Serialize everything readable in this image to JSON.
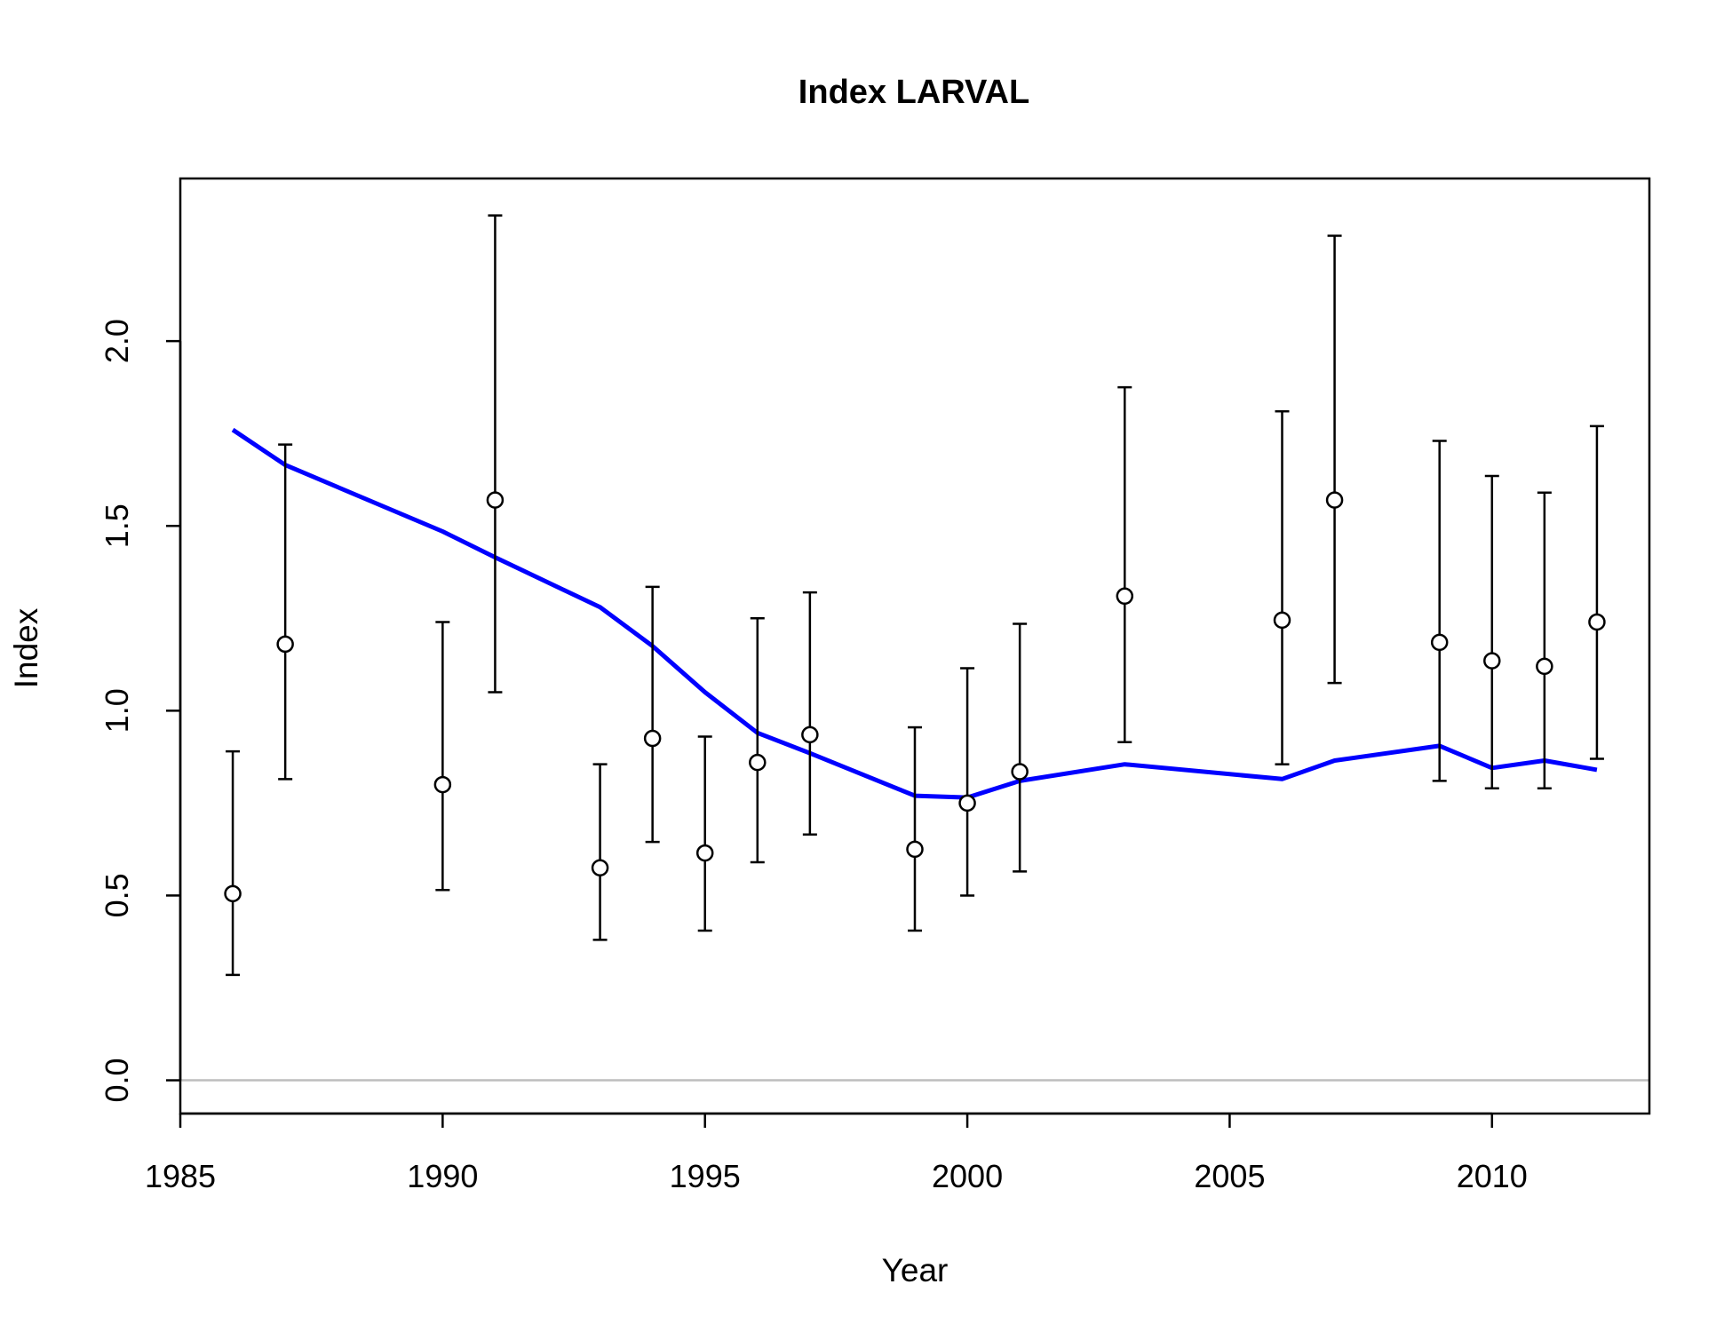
{
  "chart_data": {
    "type": "scatter",
    "title": "Index LARVAL",
    "xlabel": "Year",
    "ylabel": "Index",
    "xlim": [
      1985,
      2013
    ],
    "ylim": [
      -0.09,
      2.44
    ],
    "x_ticks": [
      1985,
      1990,
      1995,
      2000,
      2005,
      2010
    ],
    "x_tick_labels": [
      "1985",
      "1990",
      "1995",
      "2000",
      "2005",
      "2010"
    ],
    "y_ticks": [
      0.0,
      0.5,
      1.0,
      1.5,
      2.0
    ],
    "y_tick_labels": [
      "0.0",
      "0.5",
      "1.0",
      "1.5",
      "2.0"
    ],
    "reference_line": {
      "y": 0.0,
      "color": "#bebebe"
    },
    "observed": {
      "x": [
        1986,
        1987,
        1990,
        1991,
        1993,
        1994,
        1995,
        1996,
        1997,
        1999,
        2000,
        2001,
        2003,
        2006,
        2007,
        2009,
        2010,
        2011,
        2012
      ],
      "y": [
        0.505,
        1.18,
        0.8,
        1.57,
        0.575,
        0.925,
        0.615,
        0.86,
        0.935,
        0.625,
        0.75,
        0.835,
        1.31,
        1.245,
        1.57,
        1.185,
        1.135,
        1.12,
        1.24
      ],
      "lower": [
        0.285,
        0.815,
        0.515,
        1.05,
        0.38,
        0.645,
        0.405,
        0.59,
        0.665,
        0.405,
        0.5,
        0.565,
        0.915,
        0.855,
        1.075,
        0.81,
        0.79,
        0.79,
        0.87
      ],
      "upper": [
        0.89,
        1.72,
        1.24,
        2.34,
        0.855,
        1.335,
        0.93,
        1.25,
        1.32,
        0.955,
        1.115,
        1.235,
        1.875,
        1.81,
        2.285,
        1.73,
        1.635,
        1.59,
        1.77
      ],
      "marker_color": "#000000"
    },
    "fitted": {
      "x": [
        1986,
        1987,
        1990,
        1991,
        1993,
        1994,
        1995,
        1996,
        1997,
        1999,
        2000,
        2001,
        2003,
        2006,
        2007,
        2009,
        2010,
        2011,
        2012
      ],
      "y": [
        1.76,
        1.665,
        1.485,
        1.415,
        1.28,
        1.175,
        1.05,
        0.94,
        0.885,
        0.77,
        0.765,
        0.81,
        0.855,
        0.815,
        0.865,
        0.905,
        0.845,
        0.865,
        0.84
      ],
      "color": "#0000ff"
    }
  }
}
